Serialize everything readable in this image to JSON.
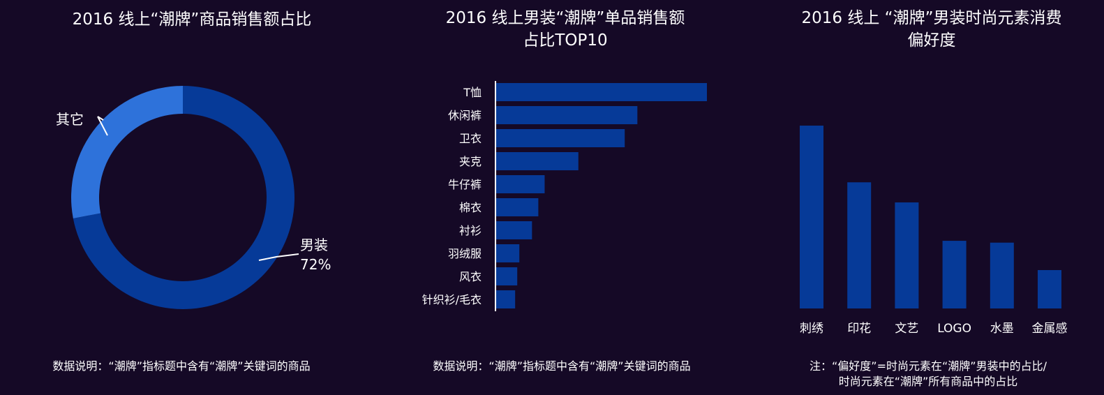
{
  "colors": {
    "background": "#150926",
    "bar": "#063a98",
    "donut_main": "#063a98",
    "donut_other": "#2e72da",
    "text": "#ffffff"
  },
  "chart_data": [
    {
      "type": "pie",
      "title": "2016 线上“潮牌”商品销售额占比",
      "donut": true,
      "slices": [
        {
          "label": "男装",
          "value": 72,
          "value_label": "72%"
        },
        {
          "label": "其它",
          "value": 28
        }
      ],
      "note": "数据说明：“潮牌”指标题中含有“潮牌”关键词的商品"
    },
    {
      "type": "bar",
      "orientation": "horizontal",
      "title": "2016 线上男装“潮牌”单品销售额占比TOP10",
      "categories": [
        "T恤",
        "休闲裤",
        "卫衣",
        "夹克",
        "牛仔裤",
        "棉衣",
        "衬衫",
        "羽绒服",
        "风衣",
        "针织衫/毛衣"
      ],
      "values": [
        100,
        67,
        61,
        39,
        23,
        20,
        17,
        11,
        10,
        9
      ],
      "note": "数据说明：“潮牌”指标题中含有“潮牌”关键词的商品"
    },
    {
      "type": "bar",
      "orientation": "vertical",
      "title": "2016 线上 “潮牌”男装时尚元素消费偏好度",
      "categories": [
        "刺绣",
        "印花",
        "文艺",
        "LOGO",
        "水墨",
        "金属感"
      ],
      "values": [
        100,
        69,
        58,
        37,
        36,
        21
      ],
      "note": "注：“偏好度”=时尚元素在“潮牌”男装中的占比/时尚元素在“潮牌”所有商品中的占比"
    }
  ],
  "titles": {
    "c1": "2016 线上“潮牌”商品销售额占比",
    "c2_line1": "2016 线上男装“潮牌”单品销售额",
    "c2_line2": "占比TOP10",
    "c3_line1": "2016 线上 “潮牌”男装时尚元素消费",
    "c3_line2": "偏好度"
  },
  "notes": {
    "c1": "数据说明：“潮牌”指标题中含有“潮牌”关键词的商品",
    "c2": "数据说明：“潮牌”指标题中含有“潮牌”关键词的商品",
    "c3_line1": "注：“偏好度”=时尚元素在“潮牌”男装中的占比/",
    "c3_line2": "时尚元素在“潮牌”所有商品中的占比"
  }
}
